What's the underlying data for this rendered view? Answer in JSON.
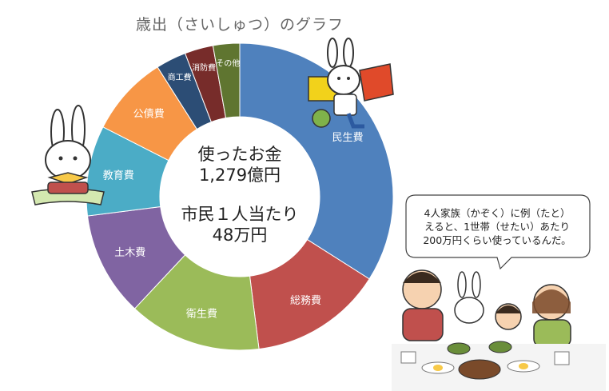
{
  "chart_data": {
    "type": "pie",
    "variant": "donut",
    "title": "歳出（さいしゅつ）のグラフ",
    "center_lines": [
      "使ったお金",
      "1,279億円",
      "市民１人当たり",
      "48万円"
    ],
    "categories": [
      "民生費",
      "総務費",
      "衛生費",
      "土木費",
      "教育費",
      "公債費",
      "商工費",
      "消防費",
      "その他"
    ],
    "values": [
      34.0,
      14.0,
      14.0,
      11.0,
      9.5,
      8.5,
      3.2,
      3.0,
      2.8
    ],
    "value_unit": "%",
    "colors": [
      "#4F81BD",
      "#C0504D",
      "#9BBB59",
      "#8064A2",
      "#4BACC6",
      "#F79646",
      "#2C4D75",
      "#772C2A",
      "#5F7530"
    ],
    "legend": "none"
  },
  "speech_bubble": {
    "lines": [
      "4人家族（かぞく）に例（たと）",
      "えると、1世帯（せたい）あたり",
      "200万円くらい使っているんだ。"
    ]
  },
  "illustrations": [
    {
      "name": "rabbit-reading-book",
      "color": "#F7C948"
    },
    {
      "name": "rabbit-carrying-boxes",
      "color": "#F2D21B"
    },
    {
      "name": "family-dining",
      "color": "#C0504D"
    }
  ]
}
